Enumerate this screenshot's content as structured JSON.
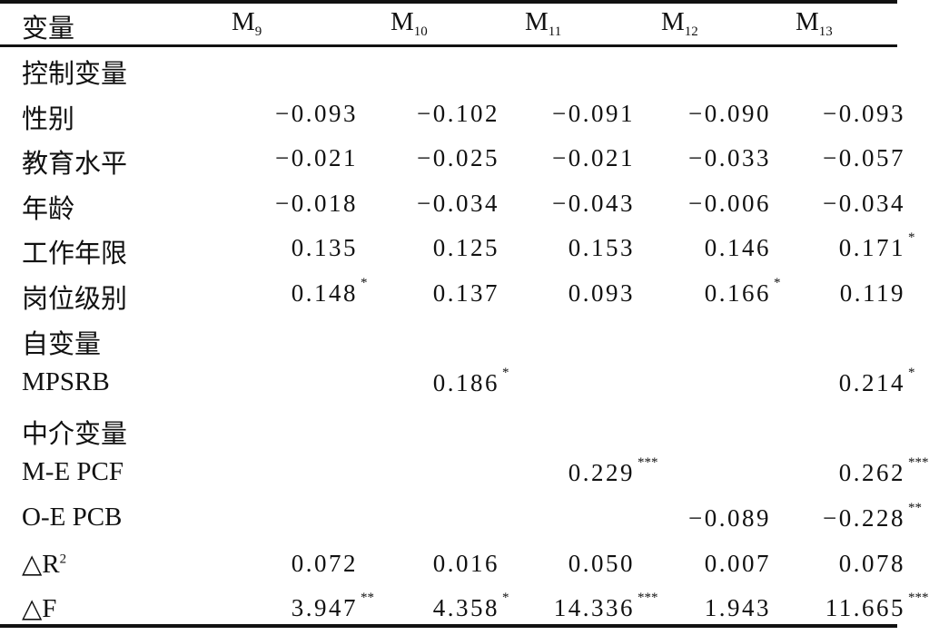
{
  "header": {
    "variable": "变量",
    "models": [
      {
        "base": "M",
        "sub": "9"
      },
      {
        "base": "M",
        "sub": "10"
      },
      {
        "base": "M",
        "sub": "11"
      },
      {
        "base": "M",
        "sub": "12"
      },
      {
        "base": "M",
        "sub": "13"
      }
    ]
  },
  "rows": [
    {
      "label": "控制变量",
      "values": []
    },
    {
      "label": "性别",
      "values": [
        {
          "v": "−0.093",
          "sig": ""
        },
        {
          "v": "−0.102",
          "sig": ""
        },
        {
          "v": "−0.091",
          "sig": ""
        },
        {
          "v": "−0.090",
          "sig": ""
        },
        {
          "v": "−0.093",
          "sig": ""
        }
      ]
    },
    {
      "label": "教育水平",
      "values": [
        {
          "v": "−0.021",
          "sig": ""
        },
        {
          "v": "−0.025",
          "sig": ""
        },
        {
          "v": "−0.021",
          "sig": ""
        },
        {
          "v": "−0.033",
          "sig": ""
        },
        {
          "v": "−0.057",
          "sig": ""
        }
      ]
    },
    {
      "label": "年龄",
      "values": [
        {
          "v": "−0.018",
          "sig": ""
        },
        {
          "v": "−0.034",
          "sig": ""
        },
        {
          "v": "−0.043",
          "sig": ""
        },
        {
          "v": "−0.006",
          "sig": ""
        },
        {
          "v": "−0.034",
          "sig": ""
        }
      ]
    },
    {
      "label": "工作年限",
      "values": [
        {
          "v": "0.135",
          "sig": ""
        },
        {
          "v": "0.125",
          "sig": ""
        },
        {
          "v": "0.153",
          "sig": ""
        },
        {
          "v": "0.146",
          "sig": ""
        },
        {
          "v": "0.171",
          "sig": "*"
        }
      ]
    },
    {
      "label": "岗位级别",
      "values": [
        {
          "v": "0.148",
          "sig": "*"
        },
        {
          "v": "0.137",
          "sig": ""
        },
        {
          "v": "0.093",
          "sig": ""
        },
        {
          "v": "0.166",
          "sig": "*"
        },
        {
          "v": "0.119",
          "sig": ""
        }
      ]
    },
    {
      "label": "自变量",
      "values": []
    },
    {
      "label": "MPSRB",
      "values": [
        {
          "v": "",
          "sig": ""
        },
        {
          "v": "0.186",
          "sig": "*"
        },
        {
          "v": "",
          "sig": ""
        },
        {
          "v": "",
          "sig": ""
        },
        {
          "v": "0.214",
          "sig": "*"
        }
      ]
    },
    {
      "label": "中介变量",
      "values": []
    },
    {
      "label": "M-E PCF",
      "values": [
        {
          "v": "",
          "sig": ""
        },
        {
          "v": "",
          "sig": ""
        },
        {
          "v": "0.229",
          "sig": "***"
        },
        {
          "v": "",
          "sig": ""
        },
        {
          "v": "0.262",
          "sig": "***"
        }
      ]
    },
    {
      "label": "O-E PCB",
      "values": [
        {
          "v": "",
          "sig": ""
        },
        {
          "v": "",
          "sig": ""
        },
        {
          "v": "",
          "sig": ""
        },
        {
          "v": "−0.089",
          "sig": ""
        },
        {
          "v": "−0.228",
          "sig": "**"
        }
      ]
    },
    {
      "label": "△R",
      "label_sup": "2",
      "values": [
        {
          "v": "0.072",
          "sig": ""
        },
        {
          "v": "0.016",
          "sig": ""
        },
        {
          "v": "0.050",
          "sig": ""
        },
        {
          "v": "0.007",
          "sig": ""
        },
        {
          "v": "0.078",
          "sig": ""
        }
      ]
    },
    {
      "label": "△F",
      "values": [
        {
          "v": "3.947",
          "sig": "**"
        },
        {
          "v": "4.358",
          "sig": "*"
        },
        {
          "v": "14.336",
          "sig": "***"
        },
        {
          "v": "1.943",
          "sig": ""
        },
        {
          "v": "11.665",
          "sig": "***"
        }
      ]
    }
  ]
}
